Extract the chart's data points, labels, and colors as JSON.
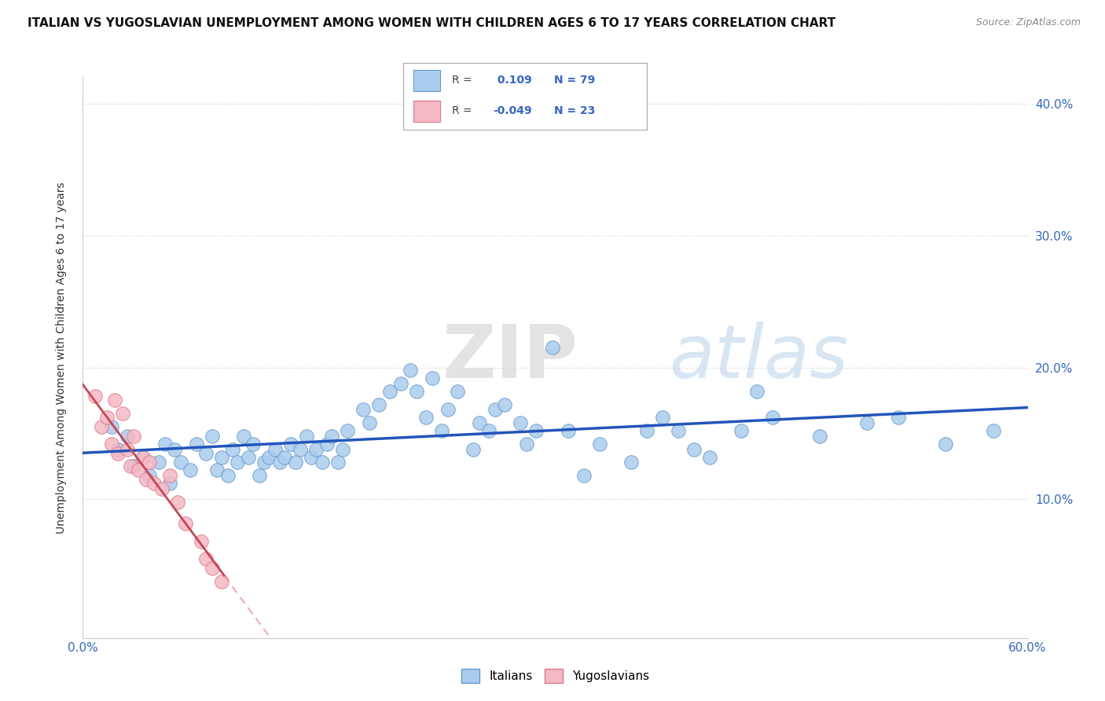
{
  "title": "ITALIAN VS YUGOSLAVIAN UNEMPLOYMENT AMONG WOMEN WITH CHILDREN AGES 6 TO 17 YEARS CORRELATION CHART",
  "source": "Source: ZipAtlas.com",
  "ylabel": "Unemployment Among Women with Children Ages 6 to 17 years",
  "xlim": [
    0.0,
    0.6
  ],
  "ylim": [
    -0.005,
    0.42
  ],
  "grid_color": "#cccccc",
  "bg_color": "#ffffff",
  "italian_color": "#aaccee",
  "italian_edge_color": "#6699cc",
  "yugoslav_color": "#f5b8c4",
  "yugoslav_edge_color": "#dd7788",
  "italian_R": 0.109,
  "italian_N": 79,
  "yugoslav_R": -0.049,
  "yugoslav_N": 23,
  "trend_italian_color": "#2255bb",
  "trend_yugoslav_solid_color": "#cc4455",
  "trend_yugoslav_dash_color": "#ee99aa",
  "legend_label_italian": "Italians",
  "legend_label_yugoslav": "Yugoslavians",
  "watermark_zip": "ZIP",
  "watermark_atlas": "atlas",
  "axis_label_color": "#3366cc",
  "italians_x": [
    0.018,
    0.022,
    0.028,
    0.032,
    0.038,
    0.042,
    0.048,
    0.052,
    0.055,
    0.058,
    0.062,
    0.068,
    0.072,
    0.078,
    0.082,
    0.085,
    0.088,
    0.092,
    0.095,
    0.098,
    0.102,
    0.105,
    0.108,
    0.112,
    0.115,
    0.118,
    0.122,
    0.125,
    0.128,
    0.132,
    0.135,
    0.138,
    0.142,
    0.145,
    0.148,
    0.152,
    0.155,
    0.158,
    0.162,
    0.165,
    0.168,
    0.178,
    0.182,
    0.188,
    0.195,
    0.202,
    0.208,
    0.212,
    0.218,
    0.222,
    0.228,
    0.232,
    0.238,
    0.248,
    0.252,
    0.258,
    0.262,
    0.268,
    0.278,
    0.282,
    0.288,
    0.298,
    0.308,
    0.318,
    0.328,
    0.348,
    0.358,
    0.368,
    0.378,
    0.388,
    0.398,
    0.418,
    0.428,
    0.438,
    0.468,
    0.498,
    0.518,
    0.548,
    0.578
  ],
  "italians_y": [
    0.155,
    0.138,
    0.148,
    0.125,
    0.132,
    0.118,
    0.128,
    0.142,
    0.112,
    0.138,
    0.128,
    0.122,
    0.142,
    0.135,
    0.148,
    0.122,
    0.132,
    0.118,
    0.138,
    0.128,
    0.148,
    0.132,
    0.142,
    0.118,
    0.128,
    0.132,
    0.138,
    0.128,
    0.132,
    0.142,
    0.128,
    0.138,
    0.148,
    0.132,
    0.138,
    0.128,
    0.142,
    0.148,
    0.128,
    0.138,
    0.152,
    0.168,
    0.158,
    0.172,
    0.182,
    0.188,
    0.198,
    0.182,
    0.162,
    0.192,
    0.152,
    0.168,
    0.182,
    0.138,
    0.158,
    0.152,
    0.168,
    0.172,
    0.158,
    0.142,
    0.152,
    0.215,
    0.152,
    0.118,
    0.142,
    0.128,
    0.152,
    0.162,
    0.152,
    0.138,
    0.132,
    0.152,
    0.182,
    0.162,
    0.148,
    0.158,
    0.162,
    0.142,
    0.152
  ],
  "yugoslavs_x": [
    0.008,
    0.012,
    0.015,
    0.018,
    0.02,
    0.022,
    0.025,
    0.028,
    0.03,
    0.032,
    0.035,
    0.038,
    0.04,
    0.042,
    0.045,
    0.05,
    0.055,
    0.06,
    0.065,
    0.075,
    0.078,
    0.082,
    0.088
  ],
  "yugoslavs_y": [
    0.178,
    0.155,
    0.162,
    0.142,
    0.175,
    0.135,
    0.165,
    0.138,
    0.125,
    0.148,
    0.122,
    0.132,
    0.115,
    0.128,
    0.112,
    0.108,
    0.118,
    0.098,
    0.082,
    0.068,
    0.055,
    0.048,
    0.038
  ]
}
